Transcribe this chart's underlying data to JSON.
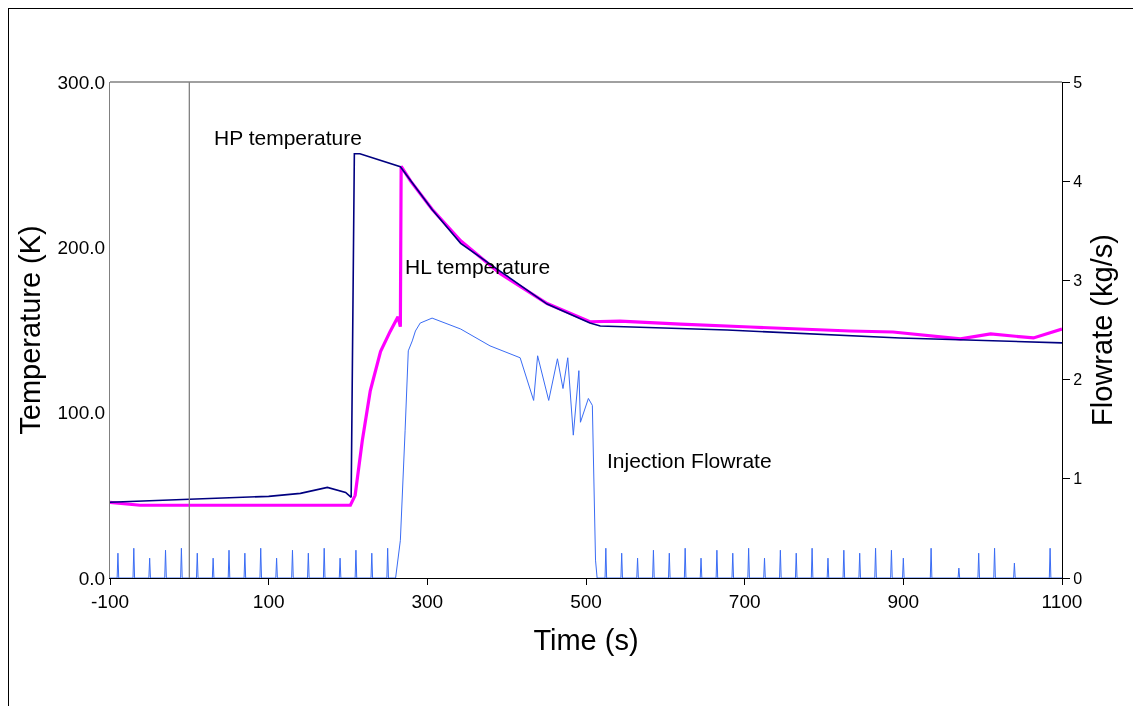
{
  "chart_data": {
    "type": "line",
    "xlabel": "Time (s)",
    "ylabel": "Temperature (K)",
    "y2label": "Flowrate (kg/s)",
    "xlim": [
      -100,
      1100
    ],
    "xticks": [
      -100,
      100,
      300,
      500,
      700,
      900,
      1100
    ],
    "ylim": [
      0,
      300
    ],
    "yticks": [
      {
        "value": 0,
        "label": "0.0"
      },
      {
        "value": 100,
        "label": "100.0"
      },
      {
        "value": 200,
        "label": "200.0"
      },
      {
        "value": 300,
        "label": "300.0"
      }
    ],
    "y2lim": [
      0,
      5
    ],
    "y2ticks": [
      0,
      1,
      2,
      3,
      4,
      5
    ],
    "grid": false,
    "legend": false,
    "marker": "none",
    "line_style": "solid",
    "ref_lines": [
      {
        "axis": "x",
        "value": 0,
        "color": "#808080"
      }
    ],
    "series": [
      {
        "name": "HP temperature",
        "color": "#000080",
        "x": [
          -100,
          0,
          100,
          140,
          174,
          197,
          204,
          208,
          215,
          266,
          306,
          342,
          392,
          451,
          505,
          518,
          678,
          896,
          1100
        ],
        "values": [
          45.8,
          47.6,
          49.4,
          51.2,
          54.8,
          51.8,
          48.8,
          256.6,
          256.6,
          248.8,
          222.9,
          202.4,
          185.5,
          165.7,
          154.2,
          152.4,
          150,
          145.2,
          142.2
        ]
      },
      {
        "name": "HL temperature",
        "color": "#ff00ff",
        "x": [
          -100,
          -62,
          0,
          140,
          203,
          209,
          218,
          228,
          241,
          253,
          263,
          266,
          267,
          279,
          306,
          342,
          392,
          451,
          505,
          543,
          619,
          707,
          833,
          887,
          972,
          1010,
          1064,
          1100
        ],
        "values": [
          45.8,
          44,
          44,
          44,
          44,
          50,
          83,
          113,
          137,
          149,
          158,
          152,
          249,
          240,
          223,
          204,
          184,
          166,
          155,
          155.4,
          153.6,
          151.8,
          149.4,
          148.8,
          144.6,
          147.6,
          145.2,
          150.6
        ]
      },
      {
        "name": "Injection Flowrate",
        "color": "#3a6cf4",
        "axis": "y2",
        "x": [
          -100,
          -91,
          -90,
          -89,
          -71,
          -70,
          -69,
          -51,
          -50,
          -49,
          -31,
          -30,
          -29,
          -11,
          -10,
          -9,
          9,
          10,
          11,
          29,
          30,
          31,
          49,
          50,
          51,
          69,
          70,
          71,
          89,
          90,
          91,
          109,
          110,
          111,
          129,
          130,
          131,
          149,
          150,
          151,
          169,
          170,
          171,
          189,
          190,
          191,
          209,
          210,
          211,
          229,
          230,
          231,
          249,
          250,
          251,
          260,
          266,
          272,
          276,
          281,
          285,
          291,
          306,
          342,
          379,
          417,
          434,
          439,
          453,
          464,
          471,
          477,
          484,
          491,
          493,
          503,
          508,
          512,
          514,
          524,
          525,
          526,
          544,
          545,
          546,
          564,
          565,
          566,
          584,
          585,
          586,
          604,
          605,
          606,
          624,
          625,
          626,
          644,
          645,
          646,
          664,
          665,
          666,
          684,
          685,
          686,
          704,
          705,
          706,
          724,
          725,
          726,
          744,
          745,
          746,
          764,
          765,
          766,
          784,
          785,
          786,
          804,
          805,
          806,
          824,
          825,
          826,
          844,
          845,
          846,
          864,
          865,
          866,
          884,
          885,
          886,
          899,
          900,
          901,
          934,
          935,
          936,
          969,
          970,
          971,
          994,
          995,
          996,
          1014,
          1015,
          1016,
          1039,
          1040,
          1041,
          1084,
          1085,
          1086,
          1100
        ],
        "values": [
          0,
          0,
          0.25,
          0,
          0,
          0.3,
          0,
          0,
          0.2,
          0,
          0,
          0.28,
          0,
          0,
          0.3,
          0,
          0,
          0.25,
          0,
          0,
          0.2,
          0,
          0,
          0.28,
          0,
          0,
          0.25,
          0,
          0,
          0.3,
          0,
          0,
          0.2,
          0,
          0,
          0.28,
          0,
          0,
          0.25,
          0,
          0,
          0.3,
          0,
          0,
          0.2,
          0,
          0,
          0.28,
          0,
          0,
          0.25,
          0,
          0,
          0.3,
          0,
          0,
          0.38,
          1.49,
          2.29,
          2.39,
          2.49,
          2.57,
          2.62,
          2.51,
          2.34,
          2.22,
          1.79,
          2.24,
          1.79,
          2.21,
          1.91,
          2.22,
          1.44,
          2.09,
          1.57,
          1.81,
          1.74,
          0.18,
          0,
          0,
          0.3,
          0,
          0,
          0.25,
          0,
          0,
          0.2,
          0,
          0,
          0.28,
          0,
          0,
          0.25,
          0,
          0,
          0.3,
          0,
          0,
          0.2,
          0,
          0,
          0.28,
          0,
          0,
          0.25,
          0,
          0,
          0.3,
          0,
          0,
          0.2,
          0,
          0,
          0.28,
          0,
          0,
          0.25,
          0,
          0,
          0.3,
          0,
          0,
          0.2,
          0,
          0,
          0.28,
          0,
          0,
          0.25,
          0,
          0,
          0.3,
          0,
          0,
          0.28,
          0,
          0,
          0.2,
          0,
          0,
          0.3,
          0,
          0,
          0.1,
          0,
          0,
          0.25,
          0,
          0,
          0.3,
          0,
          0,
          0.15,
          0,
          0,
          0.3,
          0,
          0
        ]
      }
    ]
  }
}
